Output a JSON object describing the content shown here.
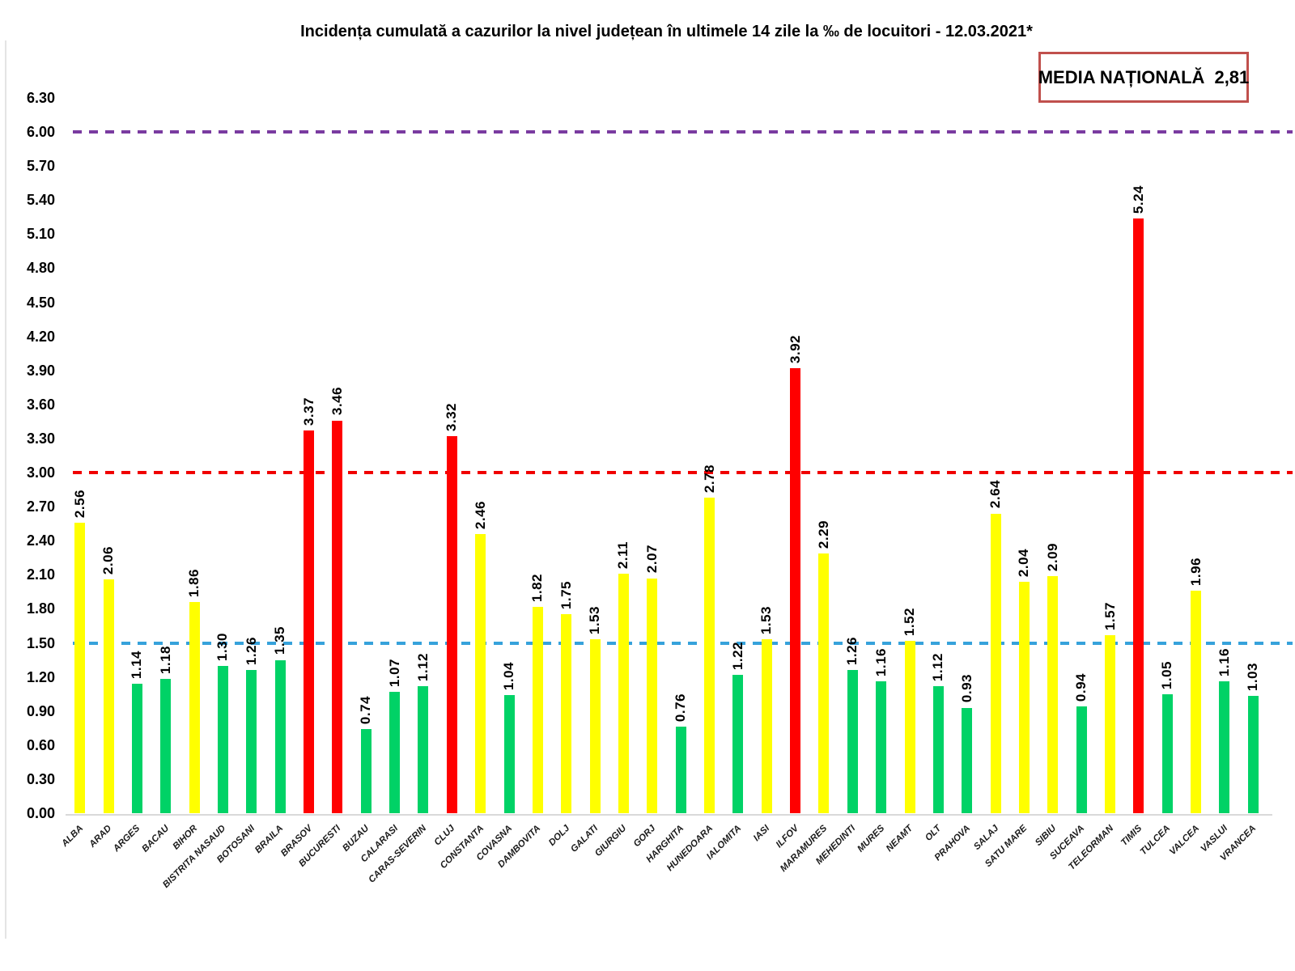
{
  "title": "Incidența cumulată a cazurilor la nivel județean în ultimele 14 zile la ‰ de locuitori - 12.03.2021*",
  "national_average": {
    "label": "MEDIA NAȚIONALĂ",
    "value": "2,81"
  },
  "chart_data": {
    "type": "bar",
    "title": "Incidența cumulată a cazurilor la nivel județean în ultimele 14 zile la ‰ de locuitori - 12.03.2021*",
    "date": "12.03.2021",
    "national_average": 2.81,
    "ylim": [
      0,
      6.3
    ],
    "ytick_step": 0.3,
    "yticks": [
      "0.00",
      "0.30",
      "0.60",
      "0.90",
      "1.20",
      "1.50",
      "1.80",
      "2.10",
      "2.40",
      "2.70",
      "3.00",
      "3.30",
      "3.60",
      "3.90",
      "4.20",
      "4.50",
      "4.80",
      "5.10",
      "5.40",
      "5.70",
      "6.00",
      "6.30"
    ],
    "grid": false,
    "legend": "none",
    "categories": [
      "ALBA",
      "ARAD",
      "ARGES",
      "BACAU",
      "BIHOR",
      "BISTRITA NASAUD",
      "BOTOSANI",
      "BRAILA",
      "BRASOV",
      "BUCURESTI",
      "BUZAU",
      "CALARASI",
      "CARAS-SEVERIN",
      "CLUJ",
      "CONSTANTA",
      "COVASNA",
      "DAMBOVITA",
      "DOLJ",
      "GALATI",
      "GIURGIU",
      "GORJ",
      "HARGHITA",
      "HUNEDOARA",
      "IALOMITA",
      "IASI",
      "ILFOV",
      "MARAMURES",
      "MEHEDINTI",
      "MURES",
      "NEAMT",
      "OLT",
      "PRAHOVA",
      "SALAJ",
      "SATU MARE",
      "SIBIU",
      "SUCEAVA",
      "TELEORMAN",
      "TIMIS",
      "TULCEA",
      "VALCEA",
      "VASLUI",
      "VRANCEA"
    ],
    "values": [
      2.56,
      2.06,
      1.14,
      1.18,
      1.86,
      1.3,
      1.26,
      1.35,
      3.37,
      3.46,
      0.74,
      1.07,
      1.12,
      3.32,
      2.46,
      1.04,
      1.82,
      1.75,
      1.53,
      2.11,
      2.07,
      0.76,
      2.78,
      1.22,
      1.53,
      3.92,
      2.29,
      1.26,
      1.16,
      1.52,
      1.12,
      0.93,
      2.64,
      2.04,
      2.09,
      0.94,
      1.57,
      5.24,
      1.05,
      1.96,
      1.16,
      1.03
    ],
    "bar_colors": [
      "yellow",
      "yellow",
      "green",
      "green",
      "yellow",
      "green",
      "green",
      "green",
      "red",
      "red",
      "green",
      "green",
      "green",
      "red",
      "yellow",
      "green",
      "yellow",
      "yellow",
      "yellow",
      "yellow",
      "yellow",
      "green",
      "yellow",
      "green",
      "yellow",
      "red",
      "yellow",
      "green",
      "green",
      "yellow",
      "green",
      "green",
      "yellow",
      "yellow",
      "yellow",
      "green",
      "yellow",
      "red",
      "green",
      "yellow",
      "green",
      "green"
    ],
    "palette": {
      "green": "#00D266",
      "yellow": "#FFFF00",
      "red": "#FF0000"
    },
    "reference_lines": [
      {
        "name": "purple-dashed-line",
        "value": 6.0,
        "color": "#7A3BA0"
      },
      {
        "name": "red-dashed-line",
        "value": 3.0,
        "color": "#F00000"
      },
      {
        "name": "blue-dashed-line",
        "value": 1.5,
        "color": "#36A2DB"
      }
    ]
  }
}
